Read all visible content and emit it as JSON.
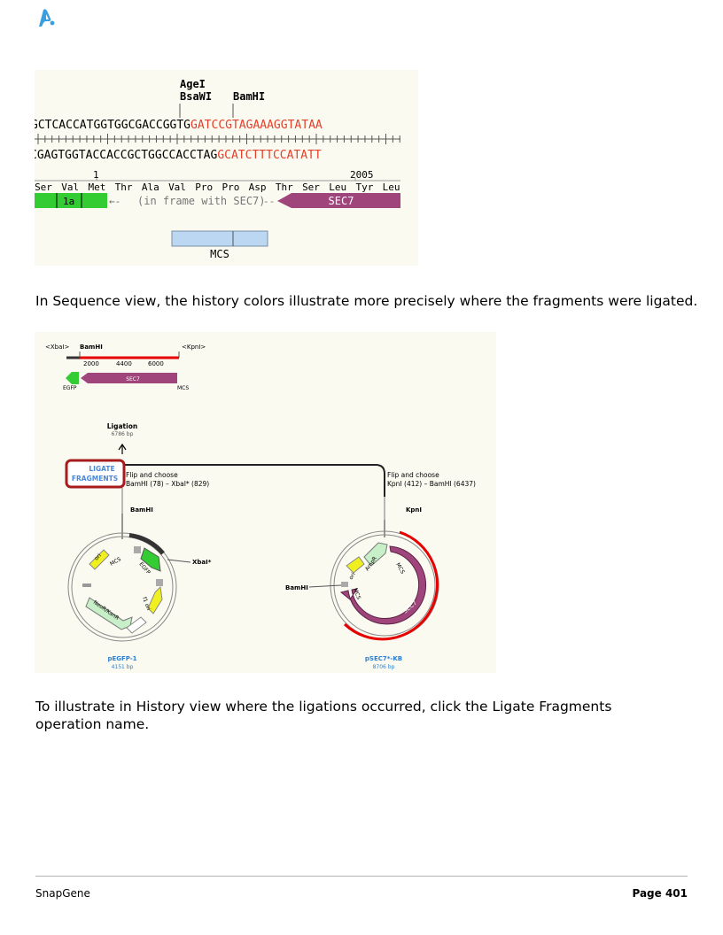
{
  "logo": {
    "icon": "snapgene-logo-icon",
    "color": "#3a9fe0"
  },
  "figure1": {
    "enzymes": {
      "agei": "AgeI",
      "bsawi": "BsaWI",
      "bamhi": "BamHI"
    },
    "top_seq_black": "GCTCACCATGGTGGCGACCGGTG",
    "top_seq_red": "GATCCGTAGAAAGGTATAA",
    "bottom_seq_black": "CGAGTGGTACCACCGCTGGCCACCTAG",
    "bottom_seq_red": "GCATCTTTCCATATT",
    "ruler_left": "1",
    "ruler_right": "2005",
    "amino_acids": [
      "Ser",
      "Val",
      "Met",
      "Thr",
      "Ala",
      "Val",
      "Pro",
      "Pro",
      "Asp",
      "Thr",
      "Ser",
      "Leu",
      "Tyr",
      "Leu"
    ],
    "feature_1a": "1a",
    "frame_note": "(in frame with SEC7)",
    "feature_sec7": "SEC7",
    "mcs": "MCS",
    "colors": {
      "red": "#e2402a",
      "green": "#33cc33",
      "purple": "#a0457b",
      "mcs_blue": "#bcd7f2"
    }
  },
  "para1": "In Sequence view, the history colors illustrate more precisely where the fragments were ligated.",
  "figure2": {
    "map_xbai": "<XbaI>",
    "map_bamhi": "BamHI",
    "map_kpni": "<KpnI>",
    "map_ticks": [
      "2000",
      "4400",
      "6000"
    ],
    "map_egfp": "EGFP",
    "map_sec7": "SEC7",
    "map_mcs": "MCS",
    "ligation_title": "Ligation",
    "ligation_size": "6786 bp",
    "ligate_line1": "LIGATE",
    "ligate_line2": "FRAGMENTS",
    "left_flip": "Flip and choose",
    "left_choice": "BamHI (78) – XbaI* (829)",
    "right_flip": "Flip and choose",
    "right_choice": "KpnI (412) – BamHI (6437)",
    "plasmid1": {
      "bamhi": "BamHI",
      "xbai": "XbaI*",
      "features": [
        "ori",
        "MCS",
        "EGFP",
        "f1 ori",
        "NeoR/KanR"
      ],
      "name": "pEGFP-1",
      "size": "4151 bp"
    },
    "plasmid2": {
      "kpni": "KpnI",
      "bamhi": "BamHI",
      "features": [
        "ori",
        "AmpR",
        "MCS",
        "MCS",
        "SEC7"
      ],
      "name": "pSEC7*-KB",
      "size": "8706 bp"
    },
    "colors": {
      "highlight_box": "#a61c1c",
      "ligate_blue": "#4a88d8",
      "red_arc": "#e60000",
      "yellow": "#f0f020",
      "light_green": "#c8f0c8"
    }
  },
  "para2": "To illustrate in History view where the ligations occurred, click the Ligate Fragments operation name.",
  "footer": {
    "left": "SnapGene",
    "right": "Page 401"
  }
}
